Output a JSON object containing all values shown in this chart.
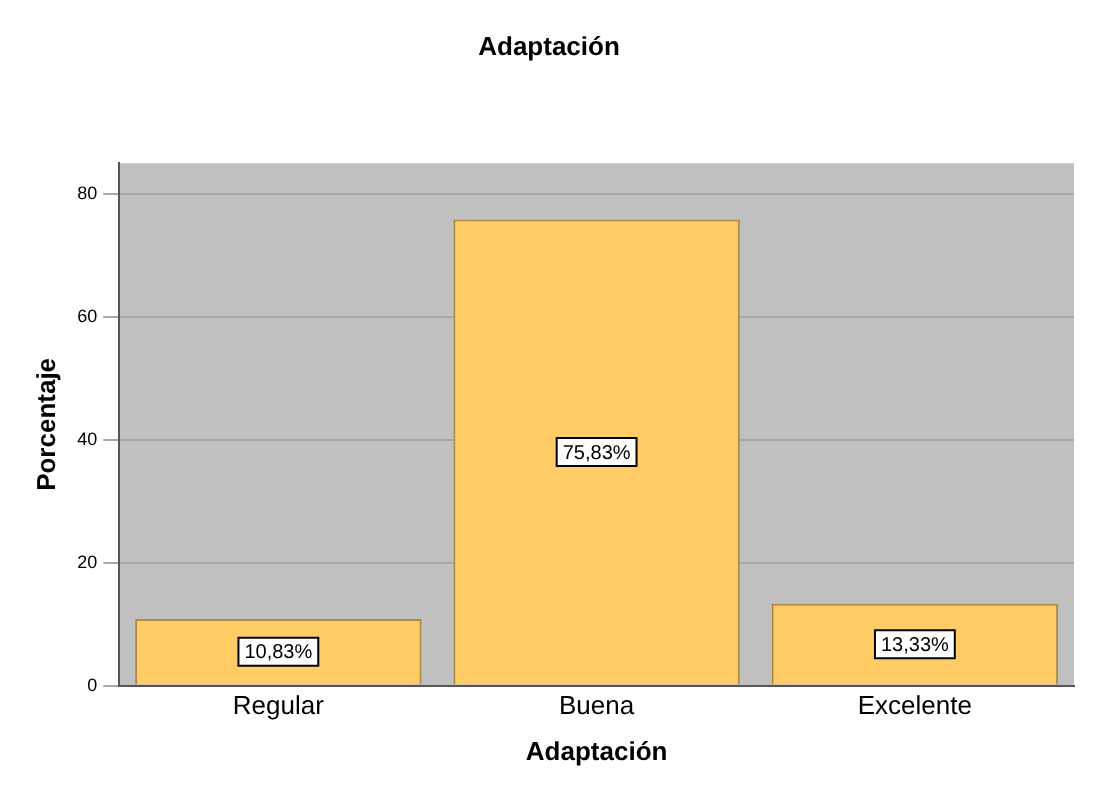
{
  "chart_data": {
    "type": "bar",
    "title": "Adaptación",
    "xlabel": "Adaptación",
    "ylabel": "Porcentaje",
    "categories": [
      "Regular",
      "Buena",
      "Excelente"
    ],
    "values": [
      10.83,
      75.83,
      13.33
    ],
    "color": "#ffcc66",
    "value_labels": [
      "10,83%",
      "75,83%",
      "13,33%"
    ],
    "ylim": [
      0,
      85
    ],
    "yticks": [
      0,
      20,
      40,
      60,
      80
    ],
    "grid": "y",
    "legend": false
  }
}
